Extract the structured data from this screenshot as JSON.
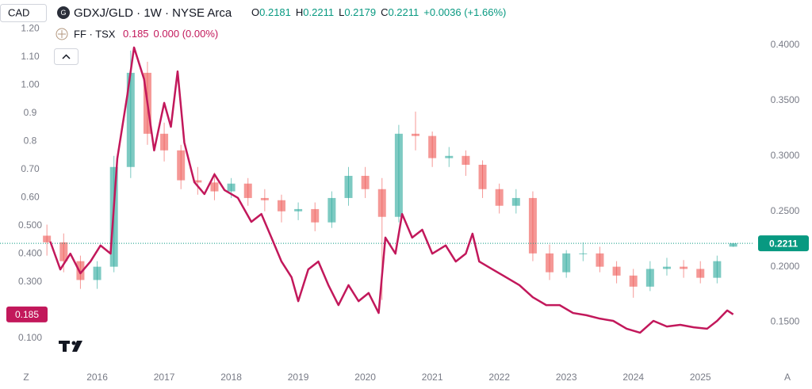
{
  "ui": {
    "currency": "CAD",
    "left_button": "Z",
    "right_button": "A"
  },
  "chart_data": {
    "type": "candlestick",
    "ohlc_labels": [
      "O",
      "H",
      "L",
      "C"
    ],
    "change_text": "+0.0036 (+1.66%)",
    "second_change_text": "0.000 (0.00%)",
    "xlim": [
      2014.55,
      2025.79
    ],
    "xticks": [
      2016,
      2017,
      2018,
      2019,
      2020,
      2021,
      2022,
      2023,
      2024,
      2025
    ],
    "ylim": [
      0,
      1.3
    ],
    "yticks": [
      {
        "value": 0.1,
        "label": "0.100"
      },
      {
        "value": 0.3,
        "label": "0.300"
      },
      {
        "value": 0.4,
        "label": "0.400"
      },
      {
        "value": 0.5,
        "label": "0.500"
      },
      {
        "value": 0.6,
        "label": "0.60"
      },
      {
        "value": 0.7,
        "label": "0.70"
      },
      0.8,
      0.9,
      {
        "value": 1.0,
        "label": "1.00"
      },
      {
        "value": 1.1,
        "label": "1.10"
      },
      {
        "value": 1.2,
        "label": "1.20"
      }
    ],
    "y2lim": [
      0.11,
      0.44
    ],
    "y2ticks": [
      {
        "value": 0.15,
        "label": "0.1500"
      },
      {
        "value": 0.2,
        "label": "0.2000"
      },
      {
        "value": 0.25,
        "label": "0.2500"
      },
      {
        "value": 0.3,
        "label": "0.3000"
      },
      {
        "value": 0.35,
        "label": "0.3500"
      },
      {
        "value": 0.4,
        "label": "0.4000"
      }
    ],
    "grid": false,
    "last_price_line": true,
    "series": [
      {
        "name": "GDXJ/GLD · 1W · NYSE Arca",
        "type": "candlestick",
        "axis": "y2",
        "up_color": "#26a69a",
        "down_color": "#ef5350",
        "label_color": "#089981",
        "x": [
          2015.25,
          2015.5,
          2015.75,
          2016.0,
          2016.25,
          2016.5,
          2016.75,
          2017.0,
          2017.25,
          2017.5,
          2017.75,
          2018.0,
          2018.25,
          2018.5,
          2018.75,
          2019.0,
          2019.25,
          2019.5,
          2019.75,
          2020.0,
          2020.25,
          2020.5,
          2020.75,
          2021.0,
          2021.25,
          2021.5,
          2021.75,
          2022.0,
          2022.25,
          2022.5,
          2022.75,
          2023.0,
          2023.25,
          2023.5,
          2023.75,
          2024.0,
          2024.25,
          2024.5,
          2024.75,
          2025.0,
          2025.25,
          2025.49
        ],
        "open": [
          0.228,
          0.222,
          0.205,
          0.188,
          0.2,
          0.29,
          0.375,
          0.32,
          0.305,
          0.278,
          0.276,
          0.268,
          0.275,
          0.262,
          0.26,
          0.25,
          0.252,
          0.24,
          0.262,
          0.282,
          0.27,
          0.245,
          0.32,
          0.318,
          0.298,
          0.3,
          0.292,
          0.27,
          0.255,
          0.262,
          0.212,
          0.195,
          0.212,
          0.212,
          0.2,
          0.192,
          0.182,
          0.198,
          0.2,
          0.198,
          0.19,
          0.2181
        ],
        "high": [
          0.238,
          0.23,
          0.21,
          0.205,
          0.3,
          0.395,
          0.385,
          0.33,
          0.31,
          0.29,
          0.285,
          0.28,
          0.28,
          0.27,
          0.265,
          0.258,
          0.258,
          0.268,
          0.29,
          0.29,
          0.28,
          0.328,
          0.34,
          0.322,
          0.308,
          0.305,
          0.296,
          0.275,
          0.27,
          0.268,
          0.22,
          0.215,
          0.222,
          0.218,
          0.205,
          0.198,
          0.205,
          0.208,
          0.206,
          0.205,
          0.21,
          0.2211
        ],
        "low": [
          0.21,
          0.195,
          0.18,
          0.18,
          0.195,
          0.28,
          0.31,
          0.295,
          0.27,
          0.265,
          0.26,
          0.262,
          0.255,
          0.25,
          0.24,
          0.242,
          0.232,
          0.235,
          0.255,
          0.262,
          0.17,
          0.24,
          0.305,
          0.29,
          0.29,
          0.282,
          0.262,
          0.248,
          0.248,
          0.205,
          0.188,
          0.19,
          0.205,
          0.195,
          0.185,
          0.172,
          0.178,
          0.192,
          0.19,
          0.185,
          0.185,
          0.2179
        ],
        "close": [
          0.222,
          0.205,
          0.188,
          0.2,
          0.29,
          0.375,
          0.32,
          0.305,
          0.278,
          0.276,
          0.268,
          0.275,
          0.262,
          0.26,
          0.25,
          0.252,
          0.24,
          0.262,
          0.282,
          0.27,
          0.245,
          0.32,
          0.318,
          0.298,
          0.3,
          0.292,
          0.27,
          0.255,
          0.262,
          0.212,
          0.195,
          0.212,
          0.212,
          0.2,
          0.192,
          0.182,
          0.198,
          0.2,
          0.198,
          0.19,
          0.205,
          0.2211
        ]
      },
      {
        "name": "FF · TSX",
        "type": "line",
        "axis": "y",
        "color": "#c2185b",
        "x": [
          2015.3,
          2015.45,
          2015.6,
          2015.75,
          2015.9,
          2016.05,
          2016.2,
          2016.3,
          2016.45,
          2016.55,
          2016.7,
          2016.85,
          2017.0,
          2017.1,
          2017.2,
          2017.3,
          2017.45,
          2017.6,
          2017.75,
          2017.9,
          2018.1,
          2018.3,
          2018.45,
          2018.6,
          2018.75,
          2018.9,
          2019.0,
          2019.15,
          2019.3,
          2019.45,
          2019.6,
          2019.75,
          2019.9,
          2020.05,
          2020.2,
          2020.3,
          2020.45,
          2020.55,
          2020.7,
          2020.85,
          2021.0,
          2021.2,
          2021.35,
          2021.5,
          2021.6,
          2021.7,
          2021.9,
          2022.1,
          2022.3,
          2022.5,
          2022.7,
          2022.9,
          2023.1,
          2023.3,
          2023.5,
          2023.7,
          2023.9,
          2024.1,
          2024.3,
          2024.5,
          2024.7,
          2024.9,
          2025.1,
          2025.25,
          2025.4,
          2025.49
        ],
        "values": [
          0.444,
          0.345,
          0.401,
          0.331,
          0.373,
          0.43,
          0.401,
          0.739,
          0.965,
          1.134,
          1.021,
          0.768,
          0.937,
          0.852,
          1.049,
          0.796,
          0.655,
          0.613,
          0.683,
          0.627,
          0.599,
          0.514,
          0.542,
          0.458,
          0.373,
          0.317,
          0.232,
          0.345,
          0.373,
          0.289,
          0.218,
          0.289,
          0.232,
          0.261,
          0.19,
          0.458,
          0.401,
          0.542,
          0.458,
          0.486,
          0.401,
          0.43,
          0.373,
          0.401,
          0.472,
          0.373,
          0.345,
          0.317,
          0.289,
          0.246,
          0.218,
          0.218,
          0.19,
          0.182,
          0.17,
          0.162,
          0.134,
          0.12,
          0.162,
          0.142,
          0.148,
          0.139,
          0.134,
          0.162,
          0.199,
          0.185
        ]
      }
    ]
  }
}
